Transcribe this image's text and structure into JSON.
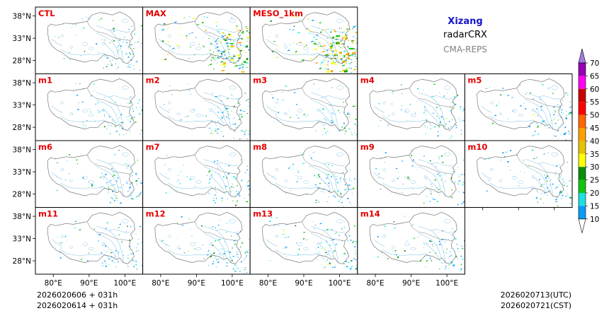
{
  "header": {
    "region": "Xizang",
    "variable": "radarCRX",
    "system": "CMA-REPS"
  },
  "panels": [
    {
      "label": "CTL",
      "intensity": 0.35
    },
    {
      "label": "MAX",
      "intensity": 0.8
    },
    {
      "label": "MESO_1km",
      "intensity": 1.0
    },
    {
      "label": "m1",
      "intensity": 0.3
    },
    {
      "label": "m2",
      "intensity": 0.4
    },
    {
      "label": "m3",
      "intensity": 0.3
    },
    {
      "label": "m4",
      "intensity": 0.3
    },
    {
      "label": "m5",
      "intensity": 0.45
    },
    {
      "label": "m6",
      "intensity": 0.35
    },
    {
      "label": "m7",
      "intensity": 0.3
    },
    {
      "label": "m8",
      "intensity": 0.35
    },
    {
      "label": "m9",
      "intensity": 0.35
    },
    {
      "label": "m10",
      "intensity": 0.35
    },
    {
      "label": "m11",
      "intensity": 0.3
    },
    {
      "label": "m12",
      "intensity": 0.4
    },
    {
      "label": "m13",
      "intensity": 0.45
    },
    {
      "label": "m14",
      "intensity": 0.35
    }
  ],
  "axes": {
    "lat_ticks": [
      "38°N",
      "33°N",
      "28°N"
    ],
    "lon_ticks": [
      "80°E",
      "90°E",
      "100°E"
    ]
  },
  "footer": {
    "init_line1": "2026020606  +  031h",
    "init_line2": "2026020614  +  031h",
    "valid_utc": "2026020713(UTC)",
    "valid_cst": "2026020721(CST)"
  },
  "colorbar": {
    "levels": [
      "10",
      "15",
      "20",
      "25",
      "30",
      "35",
      "40",
      "45",
      "50",
      "55",
      "60",
      "65",
      "70"
    ],
    "colors": [
      "#0a9bf5",
      "#1de0e0",
      "#10c410",
      "#0a8e0a",
      "#ffff00",
      "#e6c300",
      "#ffa000",
      "#ff6600",
      "#ff0000",
      "#c80000",
      "#ff00f0",
      "#9600b4",
      "#a37be0"
    ]
  },
  "map_colors": {
    "border": "#777777",
    "river": "#8fc8e6",
    "label": "#e60000",
    "title": "#1414cc",
    "subtitle": "#808080"
  }
}
